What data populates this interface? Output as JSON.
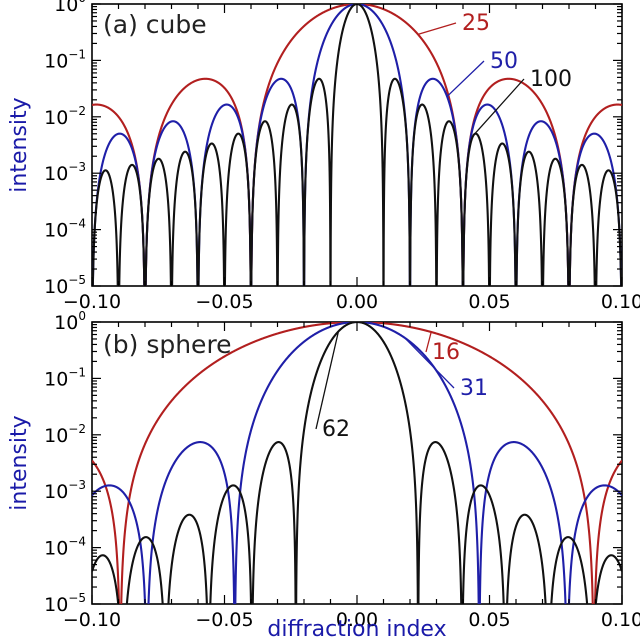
{
  "chart_data": [
    {
      "type": "line",
      "title": "(a) cube",
      "xlabel": "",
      "ylabel": "intensity",
      "xlim": [
        -0.1,
        0.1
      ],
      "ylim": [
        1e-05,
        1
      ],
      "yscale": "log",
      "xticks": [
        "−0.10",
        "−0.05",
        "0.00",
        "0.05",
        "0.10"
      ],
      "yticks": [
        {
          "base": "10",
          "exp": "0"
        },
        {
          "base": "10",
          "exp": "−1"
        },
        {
          "base": "10",
          "exp": "−2"
        },
        {
          "base": "10",
          "exp": "−3"
        },
        {
          "base": "10",
          "exp": "−4"
        },
        {
          "base": "10",
          "exp": "−5"
        }
      ],
      "series": [
        {
          "name": "25",
          "size": 25,
          "shape": "cube",
          "color": "#b21f1f"
        },
        {
          "name": "50",
          "size": 50,
          "shape": "cube",
          "color": "#1f1fa8"
        },
        {
          "name": "100",
          "size": 100,
          "shape": "cube",
          "color": "#111111"
        }
      ]
    },
    {
      "type": "line",
      "title": "(b) sphere",
      "xlabel": "diffraction index",
      "ylabel": "intensity",
      "xlim": [
        -0.1,
        0.1
      ],
      "ylim": [
        1e-05,
        1
      ],
      "yscale": "log",
      "xticks": [
        "−0.10",
        "−0.05",
        "0.00",
        "0.05",
        "0.10"
      ],
      "yticks": [
        {
          "base": "10",
          "exp": "0"
        },
        {
          "base": "10",
          "exp": "−1"
        },
        {
          "base": "10",
          "exp": "−2"
        },
        {
          "base": "10",
          "exp": "−3"
        },
        {
          "base": "10",
          "exp": "−4"
        },
        {
          "base": "10",
          "exp": "−5"
        }
      ],
      "series": [
        {
          "name": "16",
          "size": 16,
          "shape": "sphere",
          "color": "#b21f1f"
        },
        {
          "name": "31",
          "size": 31,
          "shape": "sphere",
          "color": "#1f1fa8"
        },
        {
          "name": "62",
          "size": 62,
          "shape": "sphere",
          "color": "#111111"
        }
      ]
    }
  ]
}
